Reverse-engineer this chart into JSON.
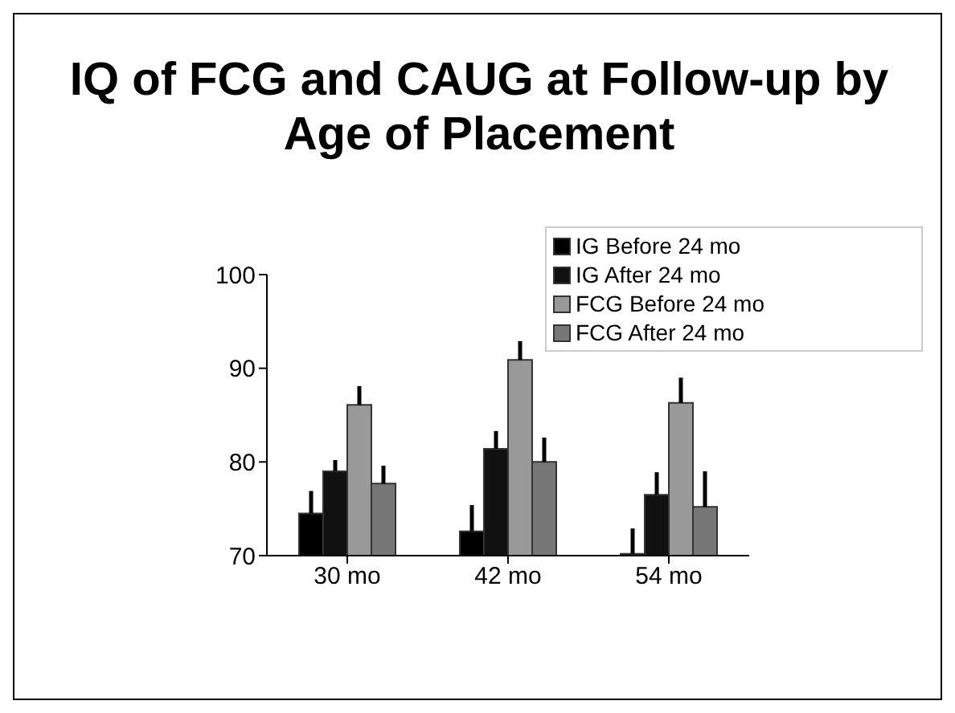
{
  "chart_data": {
    "type": "bar",
    "title": "IQ of FCG and CAUG at Follow-up by Age of Placement",
    "categories": [
      "30 mo",
      "42 mo",
      "54 mo"
    ],
    "series": [
      {
        "name": "IG Before 24 mo",
        "color": "#000000",
        "values": [
          74.5,
          72.6,
          70.2
        ],
        "errors": [
          [
            74.5,
            76.9
          ],
          [
            72.6,
            75.4
          ],
          [
            70.2,
            72.9
          ]
        ]
      },
      {
        "name": "IG After 24 mo",
        "color": "#111111",
        "values": [
          79.0,
          81.4,
          76.5
        ],
        "errors": [
          [
            79.0,
            80.2
          ],
          [
            81.4,
            83.3
          ],
          [
            76.5,
            78.9
          ]
        ]
      },
      {
        "name": "FCG Before 24 mo",
        "color": "#999999",
        "values": [
          86.1,
          90.9,
          86.3
        ],
        "errors": [
          [
            86.1,
            88.1
          ],
          [
            90.9,
            92.9
          ],
          [
            86.3,
            89.0
          ]
        ]
      },
      {
        "name": "FCG After 24 mo",
        "color": "#777777",
        "values": [
          77.7,
          80.0,
          75.2
        ],
        "errors": [
          [
            77.7,
            79.6
          ],
          [
            80.0,
            82.6
          ],
          [
            75.2,
            79.0
          ]
        ]
      }
    ],
    "ylim": [
      70,
      100
    ],
    "yticks": [
      70,
      80,
      90,
      100
    ],
    "grid": false,
    "legend": "top right"
  }
}
